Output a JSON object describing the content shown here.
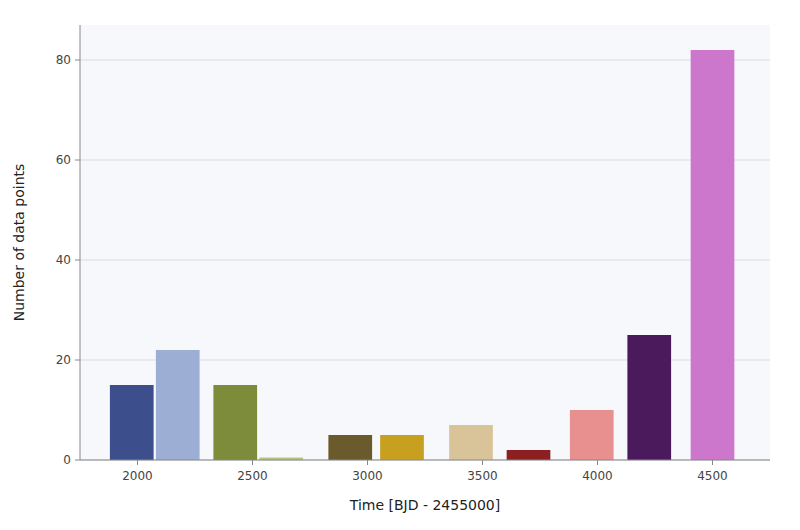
{
  "chart_data": {
    "type": "bar",
    "x": [
      1975,
      2175,
      2425,
      2625,
      2925,
      3150,
      3450,
      3700,
      3975,
      4225,
      4500
    ],
    "values": [
      15,
      22,
      15,
      0.5,
      5,
      5,
      7,
      2,
      10,
      25,
      82
    ],
    "widths": [
      190,
      190,
      190,
      190,
      190,
      190,
      190,
      190,
      190,
      190,
      190
    ],
    "colors": [
      "#3c4e8c",
      "#9daed4",
      "#7d8c3a",
      "#b5c77a",
      "#6b5a2b",
      "#c8a020",
      "#d9c49a",
      "#8b2020",
      "#e89090",
      "#4a1a5c",
      "#cc77cc"
    ],
    "xlabel": "Time [BJD - 2455000]",
    "ylabel": "Number of data points",
    "xlim": [
      1750,
      4750
    ],
    "ylim": [
      0,
      87
    ],
    "xticks": [
      2000,
      2500,
      3000,
      3500,
      4000,
      4500
    ],
    "yticks": [
      0,
      20,
      40,
      60,
      80
    ],
    "grid": true
  }
}
